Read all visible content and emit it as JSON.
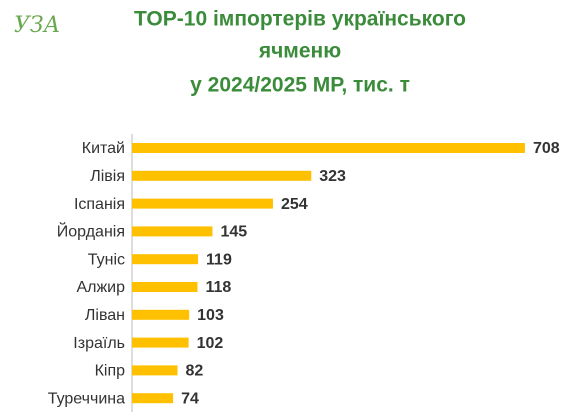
{
  "chart_data": {
    "type": "bar",
    "orientation": "horizontal",
    "logo": "УЗА",
    "title": [
      "TOP-10 імпортерів українського",
      "ячменю",
      "у 2024/2025 МР, тис. т"
    ],
    "categories": [
      "Китай",
      "Лівія",
      "Іспанія",
      "Йорданія",
      "Туніс",
      "Алжир",
      "Ліван",
      "Ізраїль",
      "Кіпр",
      "Туреччина"
    ],
    "values": [
      708,
      323,
      254,
      145,
      119,
      118,
      103,
      102,
      82,
      74
    ],
    "color": "#ffc000"
  }
}
